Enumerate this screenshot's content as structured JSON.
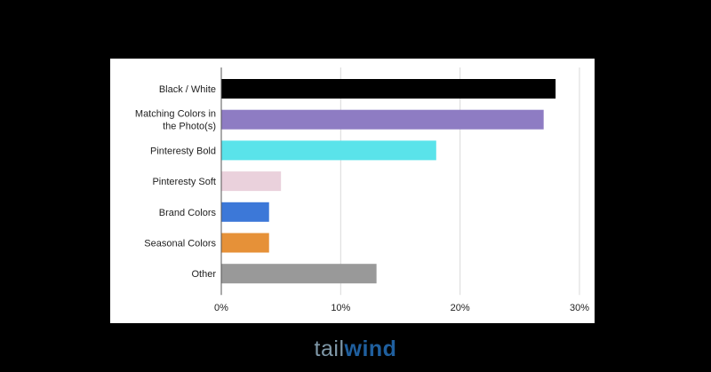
{
  "chart_data": {
    "type": "bar",
    "orientation": "horizontal",
    "categories": [
      "Black / White",
      "Matching Colors in the Photo(s)",
      "Pinteresty Bold",
      "Pinteresty Soft",
      "Brand Colors",
      "Seasonal Colors",
      "Other"
    ],
    "values": [
      28,
      27,
      18,
      5,
      4,
      4,
      13
    ],
    "colors": [
      "#000000",
      "#8e7cc3",
      "#5ae3ea",
      "#ead1dc",
      "#3c78d8",
      "#e69138",
      "#999999"
    ],
    "xlim": [
      0,
      30
    ],
    "xticks": [
      "0%",
      "10%",
      "20%",
      "30%"
    ],
    "grid": true,
    "title": "",
    "xlabel": "",
    "ylabel": ""
  },
  "brand": {
    "light": "tail",
    "bold": "wind"
  }
}
